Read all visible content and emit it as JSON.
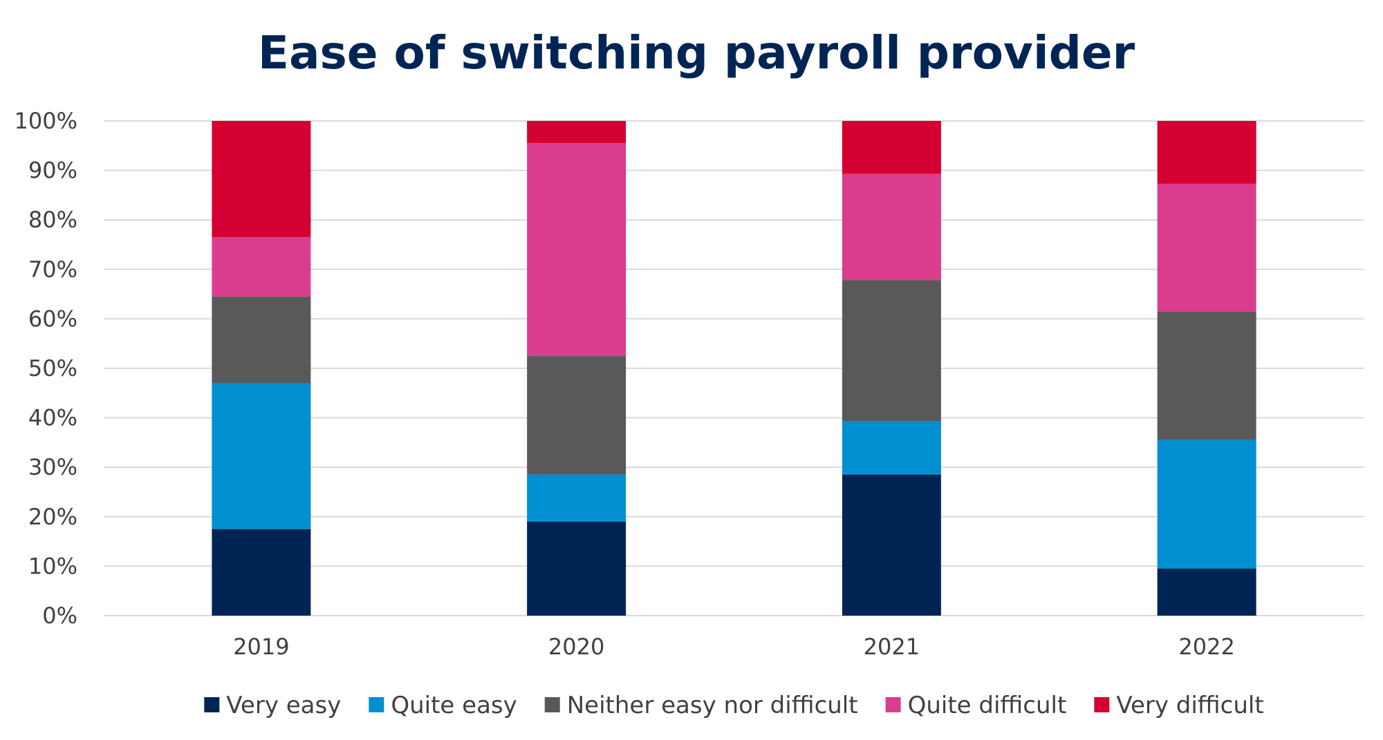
{
  "chart_data": {
    "type": "bar",
    "stacked": true,
    "title": "Ease of switching payroll provider",
    "categories": [
      "2019",
      "2020",
      "2021",
      "2022"
    ],
    "y_tick_labels": [
      "0%",
      "10%",
      "20%",
      "30%",
      "40%",
      "50%",
      "60%",
      "70%",
      "80%",
      "90%",
      "100%"
    ],
    "ylim": [
      0,
      100
    ],
    "grid": true,
    "legend_position": "bottom",
    "series": [
      {
        "name": "Very easy",
        "color": "#002554",
        "values": [
          17.5,
          19.0,
          28.5,
          9.5
        ]
      },
      {
        "name": "Quite easy",
        "color": "#008FD1",
        "values": [
          29.5,
          9.5,
          10.8,
          26.0
        ]
      },
      {
        "name": "Neither easy nor difficult",
        "color": "#595959",
        "values": [
          17.5,
          24.0,
          28.5,
          26.0
        ]
      },
      {
        "name": "Quite difficult",
        "color": "#DA3D8E",
        "values": [
          12.0,
          43.0,
          21.5,
          25.8
        ]
      },
      {
        "name": "Very difficult",
        "color": "#D50032",
        "values": [
          23.5,
          4.5,
          10.7,
          12.7
        ]
      }
    ],
    "title_color": "#002554",
    "grid_color": "#D9D9D9"
  }
}
